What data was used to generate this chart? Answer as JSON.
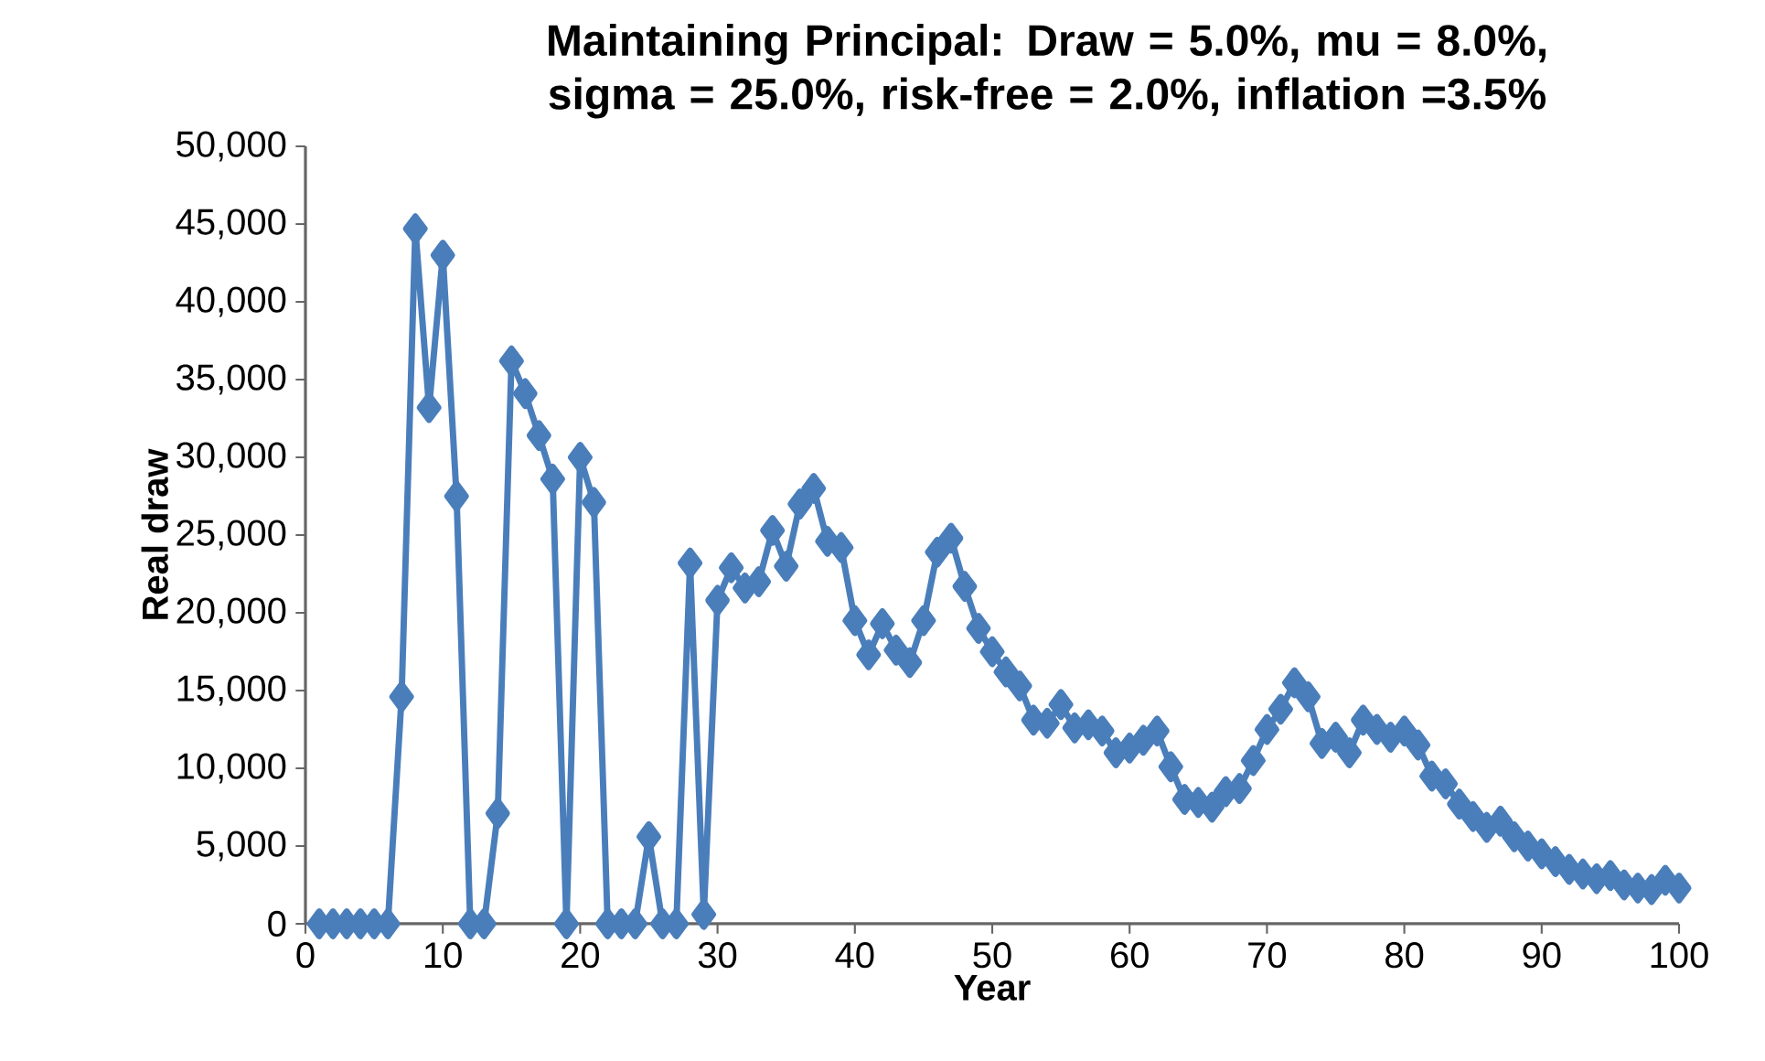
{
  "chart_data": {
    "type": "line",
    "title": "Maintaining Principal: Draw = 5.0%, mu = 8.0%, sigma = 25.0%, risk-free = 2.0%, inflation =3.5%",
    "xlabel": "Year",
    "ylabel": "Real draw",
    "x": [
      1,
      2,
      3,
      4,
      5,
      6,
      7,
      8,
      9,
      10,
      11,
      12,
      13,
      14,
      15,
      16,
      17,
      18,
      19,
      20,
      21,
      22,
      23,
      24,
      25,
      26,
      27,
      28,
      29,
      30,
      31,
      32,
      33,
      34,
      35,
      36,
      37,
      38,
      39,
      40,
      41,
      42,
      43,
      44,
      45,
      46,
      47,
      48,
      49,
      50,
      51,
      52,
      53,
      54,
      55,
      56,
      57,
      58,
      59,
      60,
      61,
      62,
      63,
      64,
      65,
      66,
      67,
      68,
      69,
      70,
      71,
      72,
      73,
      74,
      75,
      76,
      77,
      78,
      79,
      80,
      81,
      82,
      83,
      84,
      85,
      86,
      87,
      88,
      89,
      90,
      91,
      92,
      93,
      94,
      95,
      96,
      97,
      98,
      99,
      100
    ],
    "series": [
      {
        "color": "#4a7ebb",
        "values": [
          0,
          0,
          0,
          0,
          0,
          0,
          14600,
          44700,
          33200,
          43000,
          27500,
          0,
          0,
          7100,
          36200,
          34100,
          31400,
          28600,
          0,
          30000,
          27100,
          0,
          0,
          0,
          5600,
          0,
          0,
          23200,
          600,
          20800,
          22900,
          21600,
          22000,
          25300,
          23000,
          27000,
          28000,
          24600,
          24200,
          19500,
          17300,
          19300,
          17600,
          16800,
          19500,
          23900,
          24800,
          21700,
          19000,
          17500,
          16200,
          15300,
          13100,
          12900,
          14100,
          12600,
          12800,
          12400,
          11000,
          11300,
          11800,
          12400,
          10100,
          8000,
          7800,
          7500,
          8500,
          8700,
          10500,
          12500,
          13800,
          15500,
          14600,
          11600,
          12000,
          11000,
          13100,
          12500,
          12000,
          12400,
          11500,
          9500,
          9000,
          7700,
          6900,
          6200,
          6600,
          5600,
          5000,
          4500,
          4000,
          3500,
          3200,
          2900,
          3100,
          2500,
          2300,
          2200,
          2800,
          2300
        ]
      }
    ],
    "xlim": [
      0,
      100
    ],
    "xticks": [
      0,
      10,
      20,
      30,
      40,
      50,
      60,
      70,
      80,
      90,
      100
    ],
    "ylim": [
      0,
      50000
    ],
    "yticks": [
      {
        "value": 0,
        "label": "0"
      },
      {
        "value": 5000,
        "label": "5,000"
      },
      {
        "value": 10000,
        "label": "10,000"
      },
      {
        "value": 15000,
        "label": "15,000"
      },
      {
        "value": 20000,
        "label": "20,000"
      },
      {
        "value": 25000,
        "label": "25,000"
      },
      {
        "value": 30000,
        "label": "30,000"
      },
      {
        "value": 35000,
        "label": "35,000"
      },
      {
        "value": 40000,
        "label": "40,000"
      },
      {
        "value": 45000,
        "label": "45,000"
      },
      {
        "value": 50000,
        "label": "50,000"
      }
    ],
    "marker": "diamond",
    "line_style": "solid"
  }
}
